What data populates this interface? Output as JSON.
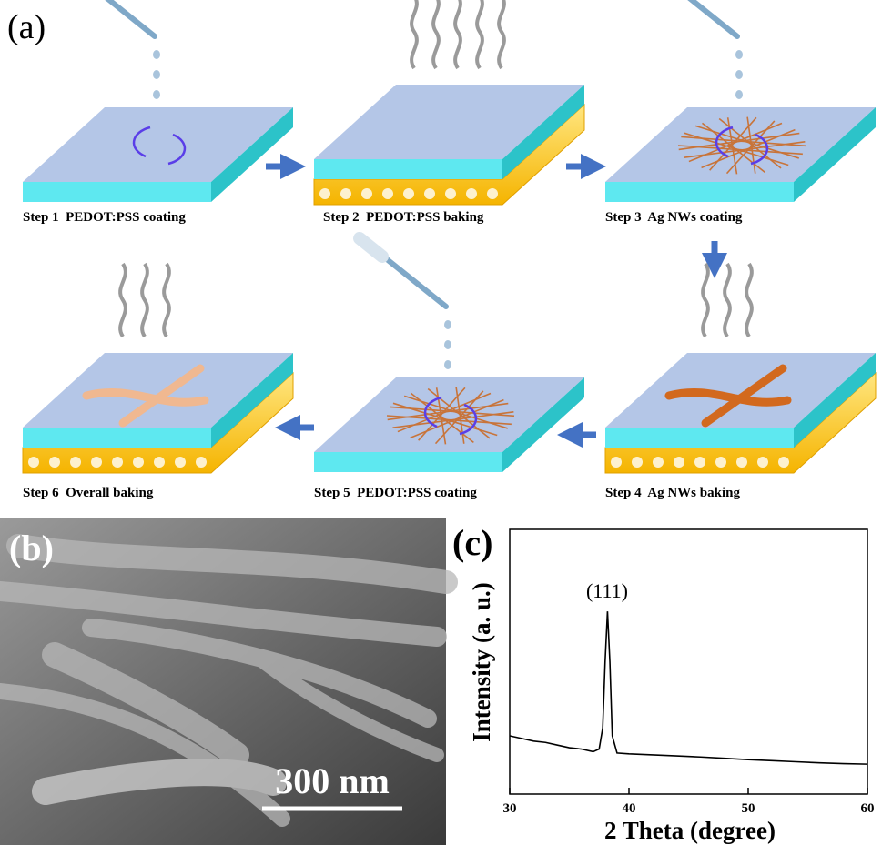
{
  "panel_a": {
    "label": "(a)",
    "steps": [
      "Step 1  PEDOT:PSS coating",
      "Step 2  PEDOT:PSS baking",
      "Step 3  Ag NWs coating",
      "Step 4  Ag NWs baking",
      "Step 5  PEDOT:PSS coating",
      "Step 6  Overall baking"
    ]
  },
  "panel_b": {
    "label": "(b)",
    "scale_bar": "300 nm"
  },
  "chart_data": {
    "type": "line",
    "label": "(c)",
    "xlabel": "2 Theta (degree)",
    "ylabel": "Intensity (a. u.)",
    "annotation": "(111)",
    "x": [
      30,
      31,
      32,
      33,
      34,
      35,
      36,
      37,
      37.5,
      37.8,
      38.0,
      38.2,
      38.4,
      38.6,
      39,
      40,
      42,
      44,
      46,
      48,
      50,
      52,
      54,
      56,
      58,
      60
    ],
    "series": [
      {
        "color": "#000000",
        "values": [
          22,
          21,
          20,
          19.5,
          18.5,
          17.5,
          17,
          16,
          17,
          25,
          50,
          69,
          50,
          22,
          15.5,
          15.2,
          14.8,
          14.4,
          14,
          13.5,
          13,
          12.6,
          12.2,
          11.8,
          11.5,
          11.3
        ]
      }
    ],
    "xlim": [
      30,
      60
    ],
    "ylim": [
      0,
      100
    ],
    "xticks": [
      30,
      40,
      50,
      60
    ]
  }
}
